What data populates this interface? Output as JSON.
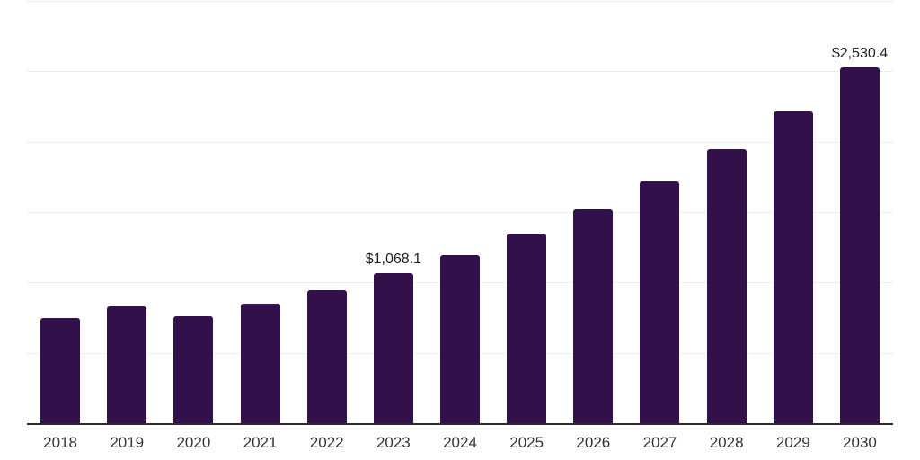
{
  "chart_data": {
    "type": "bar",
    "title": "",
    "xlabel": "",
    "ylabel": "",
    "categories": [
      "2018",
      "2019",
      "2020",
      "2021",
      "2022",
      "2023",
      "2024",
      "2025",
      "2026",
      "2027",
      "2028",
      "2029",
      "2030"
    ],
    "values": [
      747,
      830,
      762,
      848,
      947,
      1068.1,
      1192,
      1345,
      1517,
      1719,
      1945,
      2215,
      2530.4
    ],
    "value_labels": {
      "2023": "$1,068.1",
      "2030": "$2,530.4"
    },
    "ylim": [
      0,
      3000
    ],
    "gridline_step": 500,
    "grid": "horizontal",
    "y_tick_labels_visible": false,
    "legend_position": "none",
    "currency_prefix": "$"
  },
  "style": {
    "background": "#ffffff",
    "bar_color": "#32114b",
    "gridline_color": "#ededed",
    "axis_line_color": "#2b2b2b",
    "value_label_color": "#1f1f1f",
    "tick_label_color": "#333333"
  }
}
